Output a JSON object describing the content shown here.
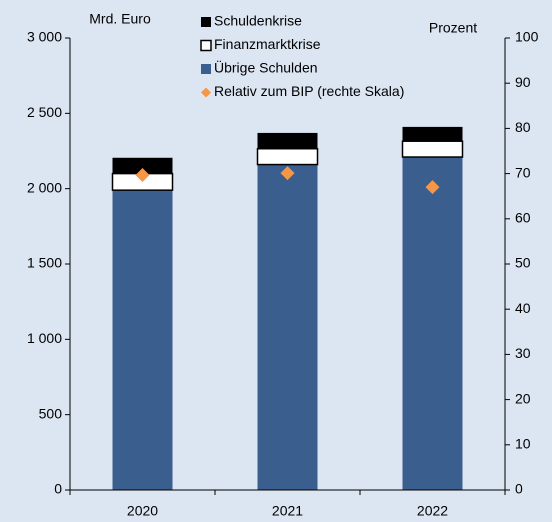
{
  "chart_data": {
    "type": "bar",
    "y_label": "Mrd. Euro",
    "y2_label": "Prozent",
    "categories": [
      "2020",
      "2021",
      "2022"
    ],
    "series": [
      {
        "name": "Schuldenkrise",
        "color": "#000000",
        "values": [
          105,
          105,
          95
        ]
      },
      {
        "name": "Finanzmarktkrise",
        "color": "#ffffff",
        "values": [
          110,
          105,
          105
        ]
      },
      {
        "name": "Übrige Schulden",
        "color": "#3a5f8f",
        "values": [
          1990,
          2160,
          2210
        ]
      },
      {
        "name": "Relativ zum BIP (rechte Skala)",
        "type": "scatter",
        "axis": "y2",
        "color": "#f79646",
        "values": [
          69.7,
          70.1,
          67
        ]
      }
    ],
    "ylim": [
      0,
      3000
    ],
    "yticks": [
      0,
      500,
      {
        "value": 1000,
        "label": "1 000"
      },
      {
        "value": 1500,
        "label": "1 500"
      },
      {
        "value": 2000,
        "label": "2 000"
      },
      {
        "value": 2500,
        "label": "2 500"
      },
      {
        "value": 3000,
        "label": "3 000"
      }
    ],
    "y2lim": [
      0,
      100
    ],
    "y2ticks": [
      0,
      10,
      20,
      30,
      40,
      50,
      60,
      70,
      80,
      90,
      100
    ]
  }
}
